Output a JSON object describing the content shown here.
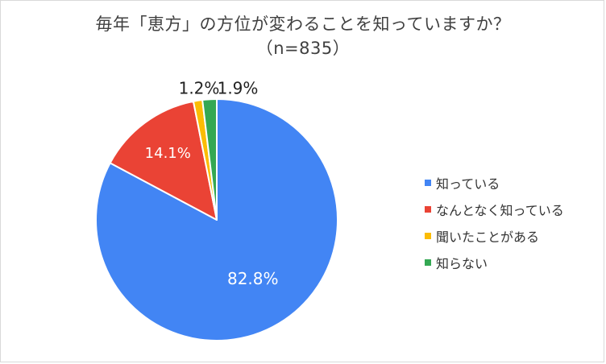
{
  "chart_data": {
    "type": "pie",
    "title": "毎年「恵方」の方位が変わることを知っていますか？",
    "subtitle": "（n=835）",
    "categories": [
      "知っている",
      "なんとなく知っている",
      "聞いたことがある",
      "知らない"
    ],
    "values": [
      82.8,
      14.1,
      1.2,
      1.9
    ],
    "value_labels": [
      "82.8%",
      "14.1%",
      "1.2%",
      "1.9%"
    ],
    "colors": [
      "#4285f4",
      "#ea4335",
      "#fbbc04",
      "#34a853"
    ],
    "legend_position": "right"
  }
}
